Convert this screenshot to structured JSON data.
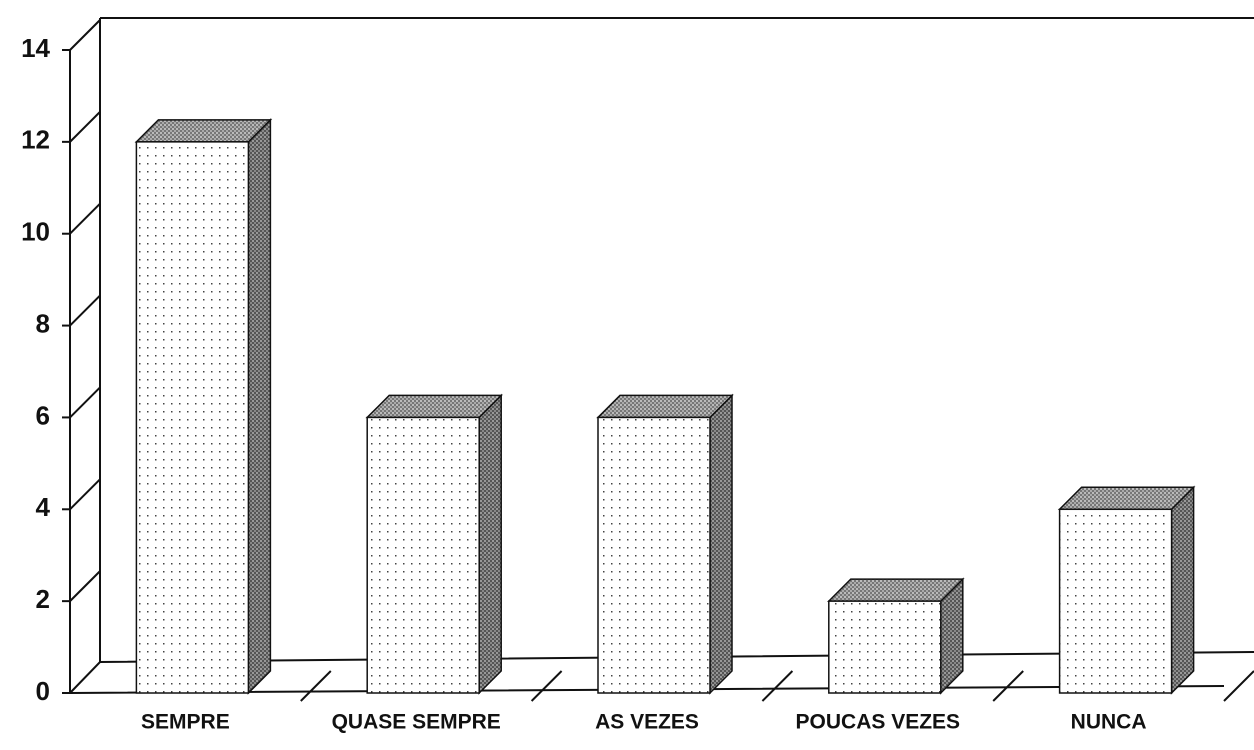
{
  "chart_data": {
    "type": "bar3d",
    "categories": [
      "SEMPRE",
      "QUASE SEMPRE",
      "AS VEZES",
      "POUCAS VEZES",
      "NUNCA"
    ],
    "values": [
      12,
      6,
      6,
      2,
      4
    ],
    "ylim": [
      0,
      14
    ],
    "yticks": [
      0,
      2,
      4,
      6,
      8,
      10,
      12,
      14
    ],
    "grid": false
  }
}
